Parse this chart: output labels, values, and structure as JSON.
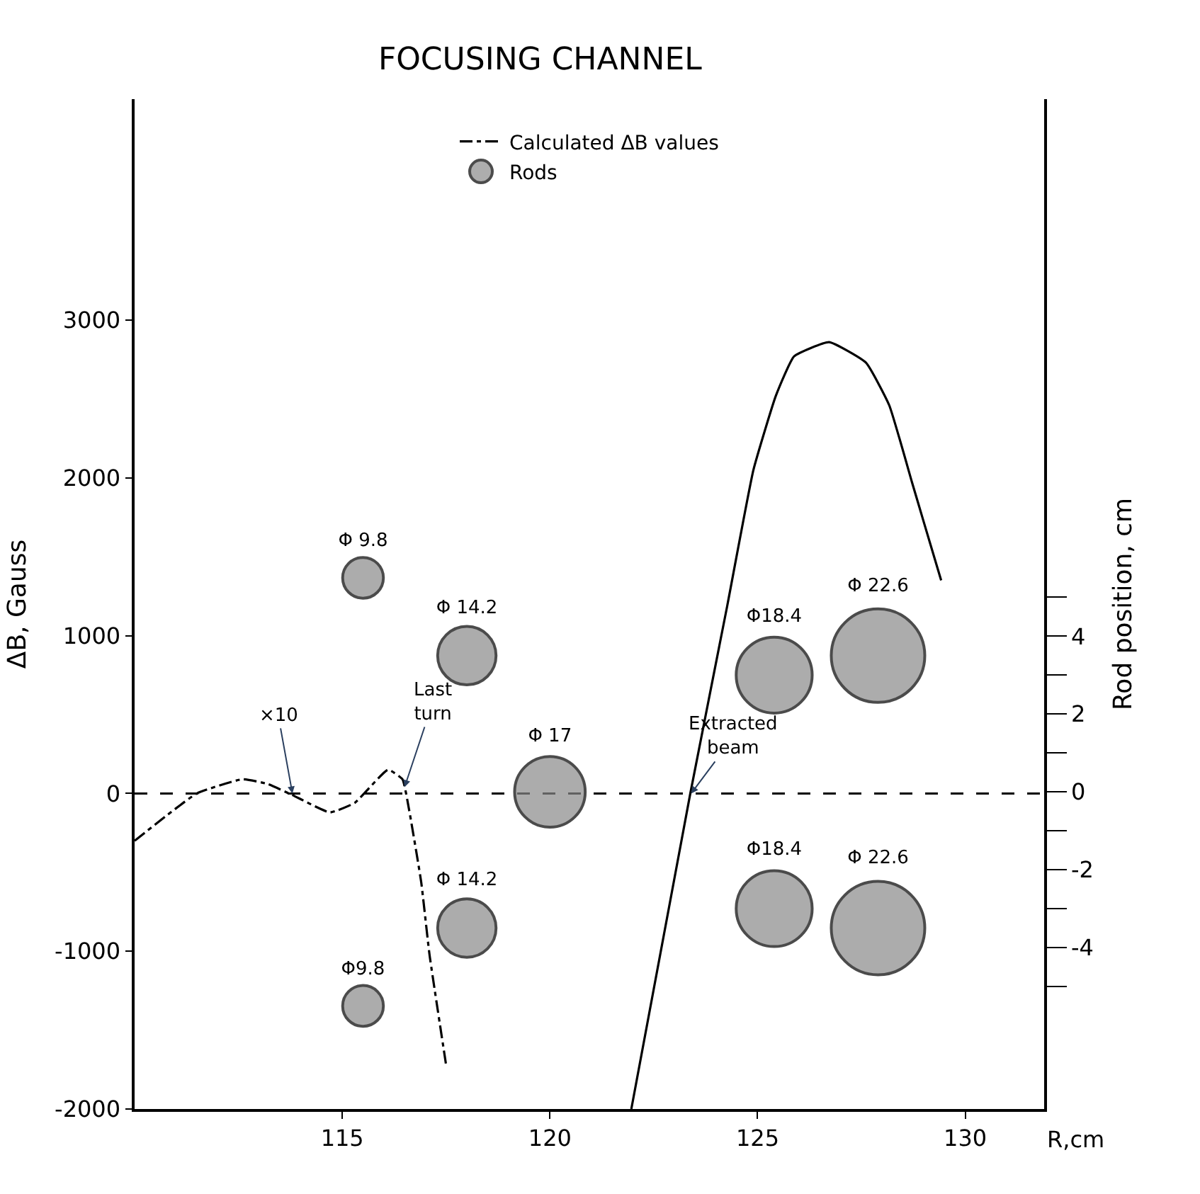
{
  "chart_data": {
    "type": "line",
    "title": "FOCUSING CHANNEL",
    "ylabel": "ΔB, Gauss",
    "y2label": "Rod position, cm",
    "xlabel": "R,cm",
    "xlim": [
      110,
      131.9
    ],
    "xticks": [
      115,
      120,
      125,
      130
    ],
    "ylim": [
      -2000,
      4400
    ],
    "yticks": [
      -2000,
      -1000,
      0,
      1000,
      2000,
      3000
    ],
    "y2lim": [
      -8.15,
      17.8
    ],
    "y2ticks": [
      {
        "value": -5,
        "label": null
      },
      -4,
      {
        "value": -3,
        "label": null
      },
      -2,
      {
        "value": -1,
        "label": null
      },
      0,
      {
        "value": 1,
        "label": null
      },
      2,
      {
        "value": 3,
        "label": null
      },
      4,
      {
        "value": 5,
        "label": null
      }
    ],
    "grid": false,
    "legend": "top",
    "ref_lines": [
      {
        "axis": "y",
        "value": 0,
        "color": "#000000",
        "line_style": "dashed"
      }
    ],
    "annotations": [
      {
        "text": "×10",
        "x": 113.8,
        "y": 0
      },
      {
        "text": "Last\nturn",
        "x": 116.5,
        "y": 40
      },
      {
        "text": "Extracted\nbeam",
        "x": 123.4,
        "y": 0
      }
    ],
    "series": [
      {
        "name": "Calculated ΔB values",
        "line_style": "dashdot",
        "marker": "none",
        "color": "#000000",
        "x": [
          110,
          111.5,
          112.6,
          113.2,
          113.8,
          114.7,
          115.3,
          116.1,
          116.45,
          116.6,
          116.9,
          117.1,
          117.5
        ],
        "values": [
          -300,
          0,
          90,
          60,
          -10,
          -120,
          -60,
          150,
          90,
          -90,
          -560,
          -1020,
          -1720
        ]
      },
      {
        "line_style": "solid",
        "marker": "none",
        "color": "#000000",
        "x": [
          121.96,
          123.38,
          124.27,
          124.9,
          125.44,
          125.88,
          126.72,
          127.61,
          128.17,
          128.72,
          128.99,
          129.42
        ],
        "values": [
          -2000,
          0,
          1190,
          2050,
          2520,
          2770,
          2860,
          2730,
          2460,
          1970,
          1730,
          1350
        ]
      },
      {
        "name": "Rods",
        "type": "bubble",
        "axis": "y2",
        "marker": "circle",
        "color": "#8a8a8a",
        "x": [
          115.5,
          115.5,
          118,
          118,
          120,
          125.4,
          125.4,
          127.9,
          127.9
        ],
        "values": [
          5.5,
          -5.5,
          3.5,
          -3.5,
          0,
          3,
          -3,
          3.5,
          -3.5
        ],
        "sizes": [
          0.19,
          0.19,
          0.39,
          0.39,
          0.57,
          0.66,
          0.66,
          1,
          1
        ],
        "value_labels": [
          "Φ 9.8",
          "Φ9.8",
          "Φ 14.2",
          "Φ 14.2",
          "Φ 17",
          "Φ18.4",
          "Φ18.4",
          "Φ 22.6",
          "Φ 22.6"
        ]
      }
    ]
  }
}
